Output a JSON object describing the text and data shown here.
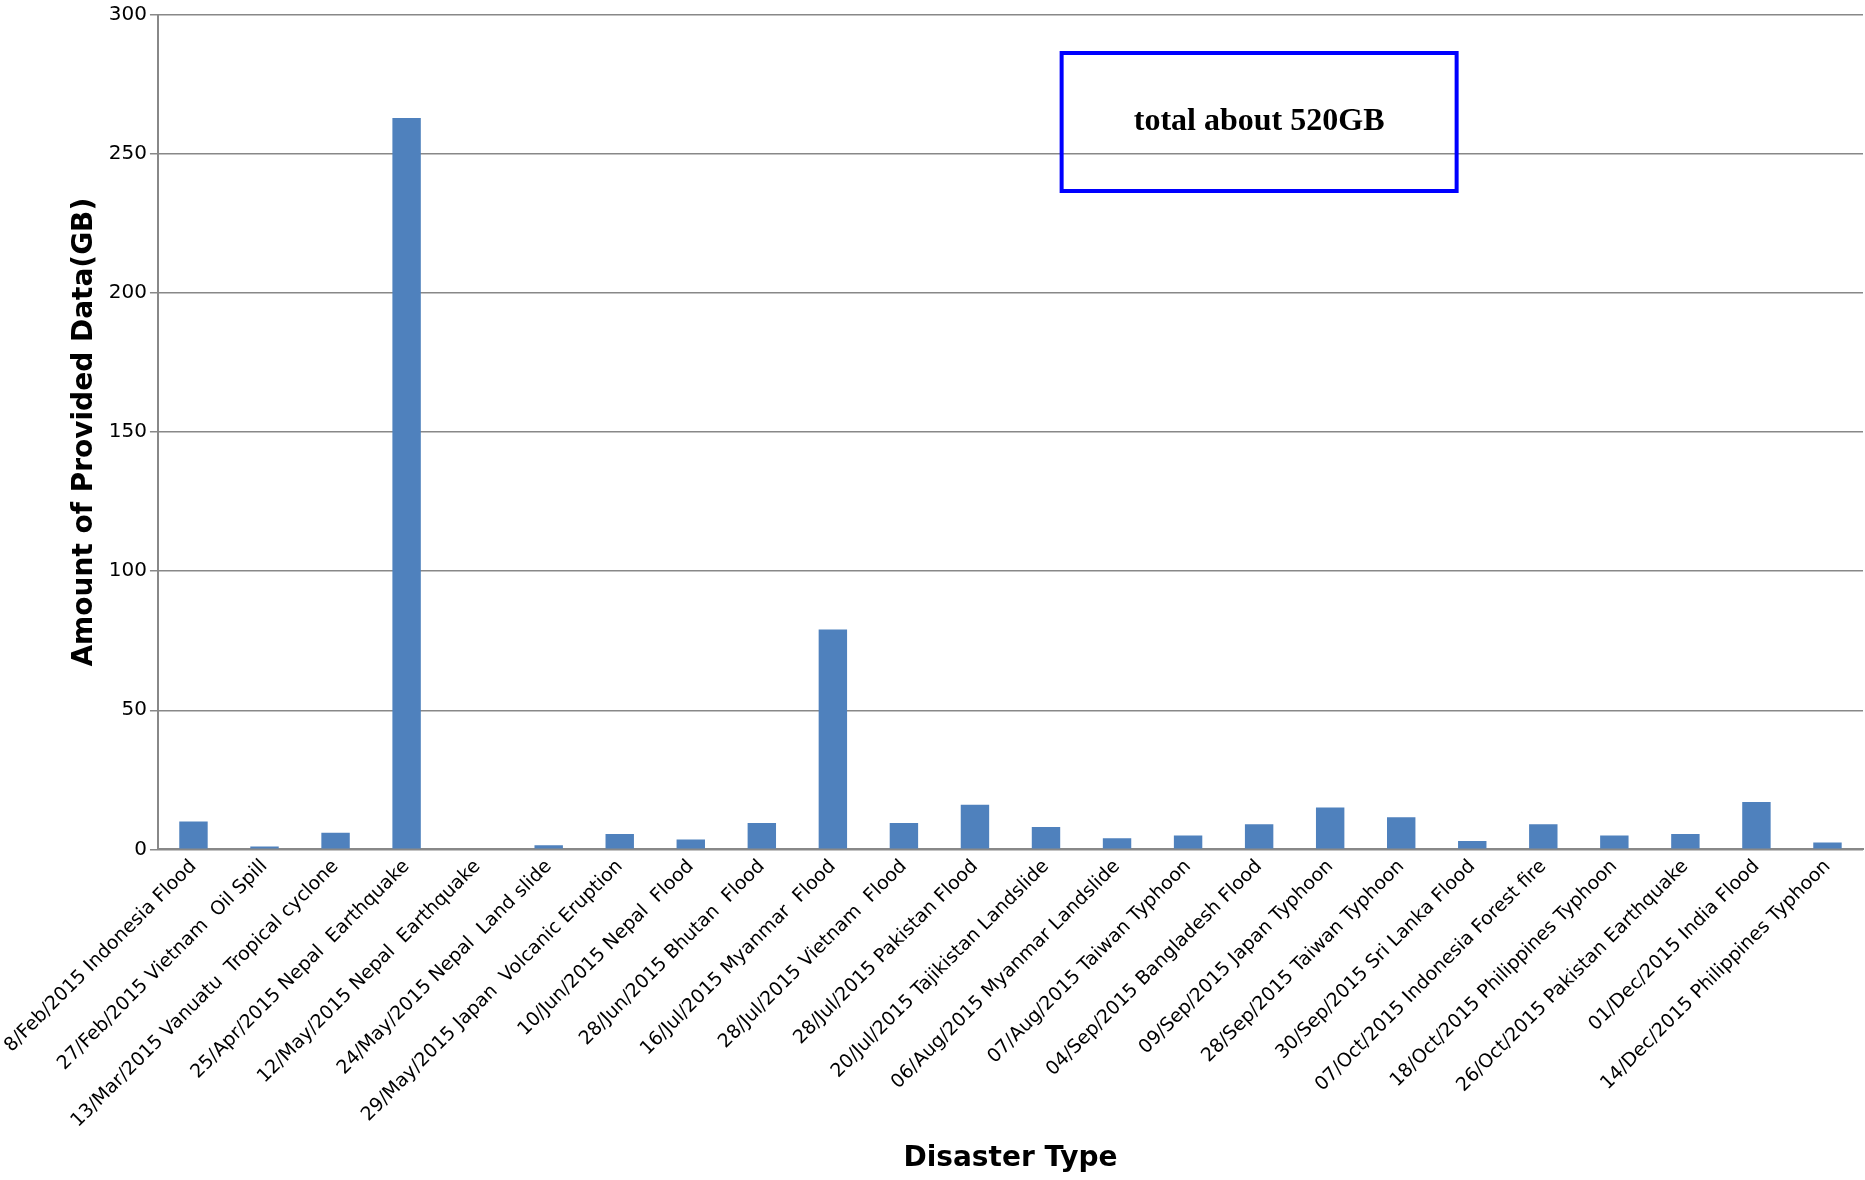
{
  "chart_data": {
    "type": "bar",
    "xlabel": "Disaster Type",
    "ylabel": "Amount of Provided Data(GB)",
    "categories": [
      "8/Feb/2015 Indonesia Flood",
      "27/Feb/2015 Vietnam  Oil Spill",
      "13/Mar/2015 Vanuatu  Tropical cyclone",
      "25/Apr/2015 Nepal  Earthquake",
      "12/May/2015 Nepal  Earthquake",
      "24/May/2015 Nepal  Land slide",
      "29/May/2015 Japan  Volcanic Eruption",
      "10/Jun/2015 Nepal  Flood",
      "28/Jun/2015 Bhutan  Flood",
      "16/Jul/2015 Myanmar  Flood",
      "28/Jul/2015 Vietnam  Flood",
      "28/Jul/2015 Pakistan Flood",
      "20/Jul/2015 Tajikistan Landslide",
      "06/Aug/2015 Myanmar Landslide",
      "07/Aug/2015 Taiwan Typhoon",
      "04/Sep/2015 Bangladesh Flood",
      "09/Sep/2015 Japan Typhoon",
      "28/Sep/2015 Taiwan Typhoon",
      "30/Sep/2015 Sri Lanka Flood",
      "07/Oct/2015 Indonesia Forest fire",
      "18/Oct/2015 Philippines Typhoon",
      "26/Oct/2015 Pakistan Earthquake",
      "01/Dec/2015 India Flood",
      "14/Dec/2015 Philippines Typhoon"
    ],
    "values": [
      10,
      1,
      6,
      263,
      0,
      1.5,
      5.5,
      3.5,
      9.5,
      79,
      9.5,
      16,
      8,
      4,
      5,
      9,
      15,
      11.5,
      3,
      9,
      5,
      5.5,
      17,
      2.5
    ],
    "color": "#4f81bd",
    "ylim": [
      0,
      300
    ],
    "yticks": [
      0,
      50,
      100,
      150,
      200,
      250,
      300
    ],
    "grid": "y",
    "legend": false,
    "annotations": [
      "total about 520GB"
    ]
  }
}
